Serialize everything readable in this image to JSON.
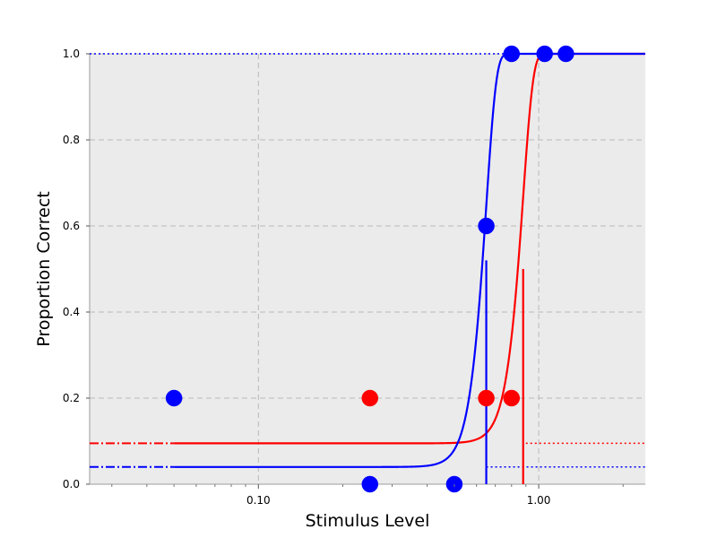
{
  "chart_data": {
    "type": "scatter",
    "title": "",
    "xlabel": "Stimulus Level",
    "ylabel": "Proportion Correct",
    "x_scale": "log",
    "xlim": [
      0.025,
      2.4
    ],
    "ylim": [
      0.0,
      1.0
    ],
    "grid": true,
    "background": "#ebebeb",
    "x_ticks": [
      {
        "value": 0.1,
        "label": "0.10"
      },
      {
        "value": 1.0,
        "label": "1.00"
      }
    ],
    "x_minor_ticks": [
      0.03,
      0.04,
      0.05,
      0.06,
      0.07,
      0.08,
      0.09,
      0.2,
      0.3,
      0.4,
      0.5,
      0.6,
      0.7,
      0.8,
      0.9,
      2.0
    ],
    "y_ticks": [
      {
        "value": 0.0,
        "label": "0.0"
      },
      {
        "value": 0.2,
        "label": "0.2"
      },
      {
        "value": 0.4,
        "label": "0.4"
      },
      {
        "value": 0.6,
        "label": "0.6"
      },
      {
        "value": 0.8,
        "label": "0.8"
      },
      {
        "value": 1.0,
        "label": "1.0"
      }
    ],
    "series": [
      {
        "color": "#ff0000",
        "points": [
          {
            "x": 0.25,
            "y": 0.2
          },
          {
            "x": 0.65,
            "y": 0.2
          },
          {
            "x": 0.8,
            "y": 0.2
          }
        ],
        "fit": {
          "guess": 0.095,
          "lapse": 0.0,
          "threshold": 0.88,
          "slope": 12,
          "x_start": 0.05
        },
        "threshold_marker": {
          "x": 0.88,
          "y_top": 0.5
        },
        "guess_line_dashdot_x": [
          0.025,
          0.05
        ],
        "guess_line_dotted_x": [
          0.9,
          2.4
        ],
        "lapse_line": null
      },
      {
        "color": "#0000ff",
        "points": [
          {
            "x": 0.05,
            "y": 0.2
          },
          {
            "x": 0.25,
            "y": 0.0
          },
          {
            "x": 0.5,
            "y": 0.0
          },
          {
            "x": 0.65,
            "y": 0.6
          },
          {
            "x": 0.8,
            "y": 1.0
          },
          {
            "x": 1.05,
            "y": 1.0
          },
          {
            "x": 1.25,
            "y": 1.0
          }
        ],
        "fit": {
          "guess": 0.04,
          "lapse": 0.0,
          "threshold": 0.65,
          "slope": 12,
          "x_start": 0.05
        },
        "threshold_marker": {
          "x": 0.65,
          "y_top": 0.52
        },
        "guess_line_dashdot_x": [
          0.025,
          0.05
        ],
        "guess_line_dotted_x": [
          0.65,
          2.4
        ],
        "lapse_line_dotted_x": [
          0.025,
          0.8
        ],
        "lapse_line_dashdot_x": [
          1.0,
          2.4
        ]
      }
    ]
  }
}
